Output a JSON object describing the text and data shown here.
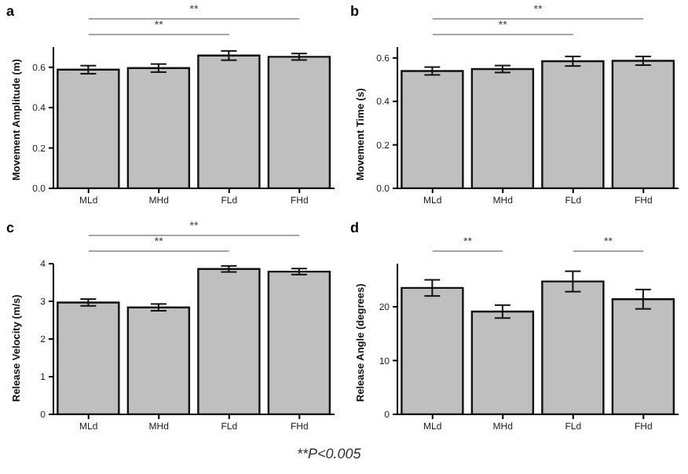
{
  "chart_data": [
    {
      "type": "bar",
      "title": "a",
      "ylabel": "Movement Amplitude (m)",
      "categories": [
        "MLd",
        "MHd",
        "FLd",
        "FHd"
      ],
      "values": [
        0.588,
        0.596,
        0.658,
        0.652
      ],
      "errors": [
        0.02,
        0.02,
        0.023,
        0.016
      ],
      "color": "#bfbfbf",
      "ylim": [
        0,
        0.7
      ],
      "yticks": [
        {
          "value": 0,
          "label": "0.0"
        },
        0.2,
        0.4,
        0.6
      ],
      "grid": false,
      "annotations": [
        "**",
        "**"
      ]
    },
    {
      "type": "bar",
      "title": "b",
      "ylabel": "Movement Time (s)",
      "categories": [
        "MLd",
        "MHd",
        "FLd",
        "FHd"
      ],
      "values": [
        0.54,
        0.549,
        0.585,
        0.587
      ],
      "errors": [
        0.018,
        0.016,
        0.022,
        0.02
      ],
      "color": "#bfbfbf",
      "ylim": [
        0,
        0.65
      ],
      "yticks": [
        {
          "value": 0,
          "label": "0.0"
        },
        0.2,
        0.4,
        0.6
      ],
      "grid": false,
      "annotations": [
        "**",
        "**"
      ]
    },
    {
      "type": "bar",
      "title": "c",
      "ylabel": "Release Velocity (m/s)",
      "categories": [
        "MLd",
        "MHd",
        "FLd",
        "FHd"
      ],
      "values": [
        2.97,
        2.84,
        3.86,
        3.79
      ],
      "errors": [
        0.09,
        0.09,
        0.08,
        0.08
      ],
      "color": "#bfbfbf",
      "ylim": [
        0,
        4
      ],
      "yticks": [
        0,
        1,
        2,
        3,
        4
      ],
      "grid": false,
      "annotations": [
        "**",
        "**",
        "**P<0.005"
      ]
    },
    {
      "type": "bar",
      "title": "d",
      "ylabel": "Release Angle (degrees)",
      "categories": [
        "MLd",
        "MHd",
        "FLd",
        "FHd"
      ],
      "values": [
        23.5,
        19.1,
        24.7,
        21.4
      ],
      "errors": [
        1.5,
        1.2,
        1.9,
        1.8
      ],
      "color": "#bfbfbf",
      "ylim": [
        0,
        28
      ],
      "yticks": [
        0,
        10,
        20
      ],
      "grid": false,
      "annotations": [
        "**",
        "**"
      ]
    }
  ]
}
